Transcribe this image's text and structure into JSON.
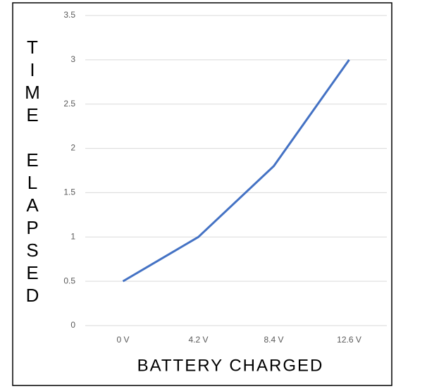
{
  "chart_data": {
    "type": "line",
    "x_label": "BATTERY CHARGED",
    "y_label": "TIME ELAPSED",
    "categories": [
      "0 V",
      "4.2 V",
      "8.4 V",
      "12.6 V"
    ],
    "values": [
      0.5,
      1,
      1.8,
      3
    ],
    "color": "#4472c4",
    "ylim": [
      0,
      3.5
    ],
    "yticks": [
      0,
      0.5,
      1,
      1.5,
      2,
      2.5,
      3,
      3.5
    ],
    "grid": true
  }
}
